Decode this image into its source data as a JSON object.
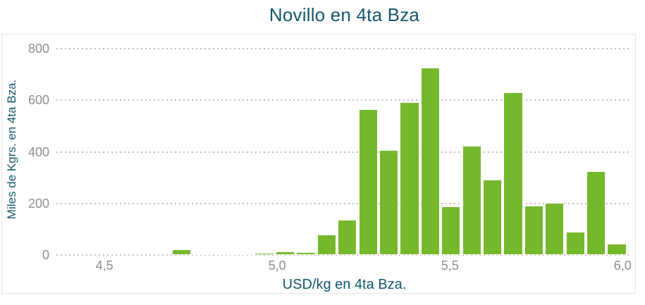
{
  "chart_data": {
    "type": "bar",
    "subtype": "histogram",
    "title": "Novillo en 4ta Bza",
    "xlabel": "USD/kg en 4ta Bza.",
    "ylabel": "Miles de Kgrs. en 4ta Bza.",
    "bin_width": 0.06,
    "bar_visual_width": 0.056,
    "x_centers": [
      4.56,
      4.62,
      4.68,
      4.74,
      4.8,
      4.86,
      4.92,
      4.98,
      5.04,
      5.1,
      5.16,
      5.22,
      5.28,
      5.34,
      5.4,
      5.46,
      5.52,
      5.58,
      5.64,
      5.7,
      5.76,
      5.82
    ],
    "values": [
      23,
      5,
      5,
      5,
      8,
      13,
      11,
      78,
      136,
      565,
      408,
      593,
      727,
      188,
      422,
      293,
      630,
      190,
      203,
      90,
      325,
      45
    ],
    "xlim": [
      4.361,
      6.028
    ],
    "ylim": [
      0,
      800
    ],
    "x_ticks": [
      {
        "value": 4.5,
        "label": "4,5"
      },
      {
        "value": 5.0,
        "label": "5,0"
      },
      {
        "value": 5.5,
        "label": "5,5"
      },
      {
        "value": 6.0,
        "label": "6,0"
      }
    ],
    "y_ticks": [
      {
        "value": 0,
        "label": "0"
      },
      {
        "value": 200,
        "label": "200"
      },
      {
        "value": 400,
        "label": "400"
      },
      {
        "value": 600,
        "label": "600"
      },
      {
        "value": 800,
        "label": "800"
      }
    ],
    "grid": "horizontal-dotted",
    "legend": "none"
  },
  "colors": {
    "bar_fill": "#76b82c",
    "bar_border": "#ffffff",
    "title_text": "#14566c",
    "axis_title_text": "#14566c",
    "tick_text": "#8e8e8e",
    "grid_dots": "#bcbcbc",
    "panel_border": "#e4e4e4",
    "background": "#ffffff"
  }
}
